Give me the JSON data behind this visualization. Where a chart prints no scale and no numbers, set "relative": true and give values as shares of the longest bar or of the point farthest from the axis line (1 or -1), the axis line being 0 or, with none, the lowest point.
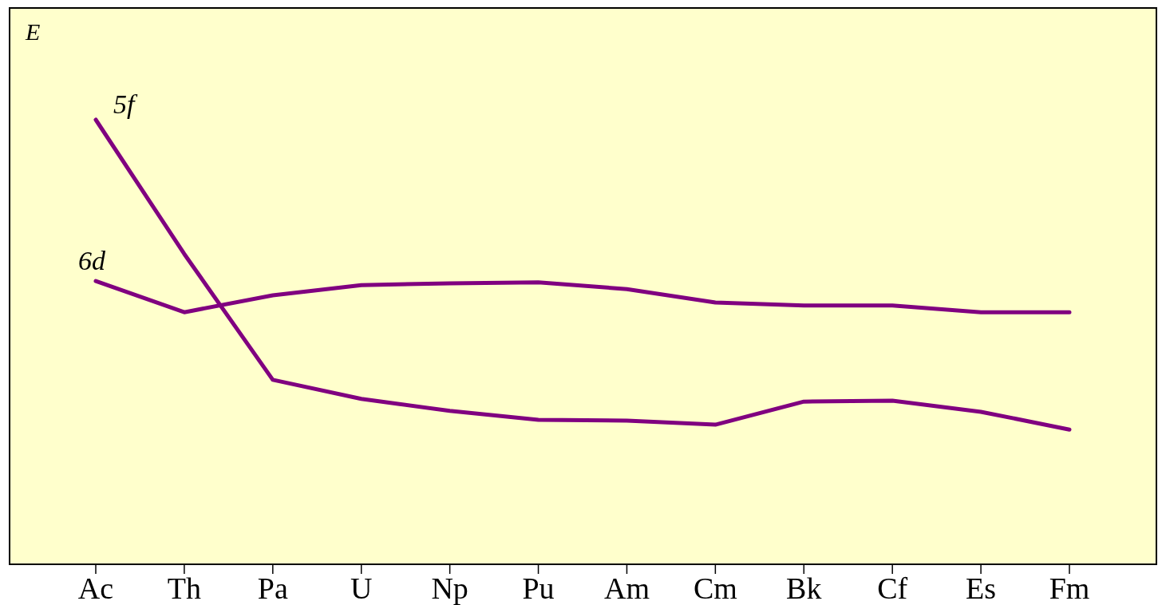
{
  "chart_data": {
    "type": "line",
    "ylabel": "E",
    "relative": true,
    "categories": [
      "Ac",
      "Th",
      "Pa",
      "U",
      "Np",
      "Pu",
      "Am",
      "Cm",
      "Bk",
      "Cf",
      "Es",
      "Fm"
    ],
    "series": [
      {
        "name": "5f",
        "color": "#800080",
        "values": [
          1,
          0.698,
          0.415,
          0.372,
          0.345,
          0.325,
          0.323,
          0.314,
          0.366,
          0.368,
          0.343,
          0.303
        ]
      },
      {
        "name": "6d",
        "color": "#800080",
        "values": [
          0.637,
          0.567,
          0.605,
          0.628,
          0.632,
          0.634,
          0.619,
          0.589,
          0.582,
          0.582,
          0.567,
          0.567
        ]
      }
    ],
    "line_style": "solid",
    "marker": "none",
    "grid": false
  }
}
